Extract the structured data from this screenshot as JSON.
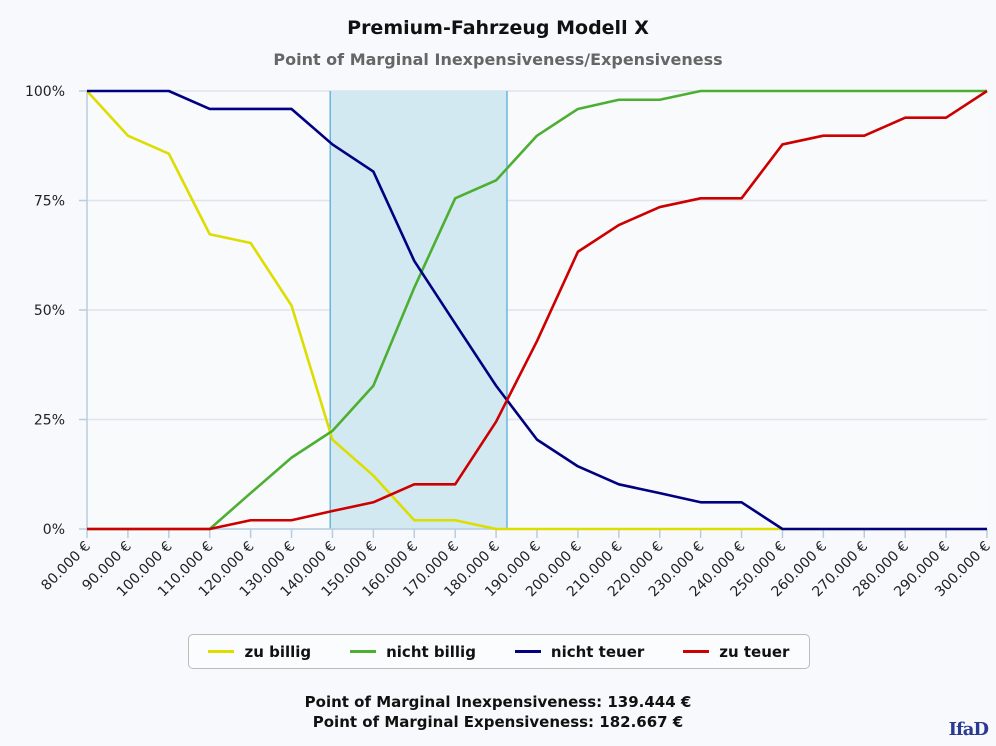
{
  "chart_data": {
    "type": "line",
    "title": "Premium-Fahrzeug Modell X",
    "subtitle": "Point of Marginal Inexpensiveness/Expensiveness",
    "x": [
      80000,
      90000,
      100000,
      110000,
      120000,
      130000,
      140000,
      150000,
      160000,
      170000,
      180000,
      190000,
      200000,
      210000,
      220000,
      230000,
      240000,
      250000,
      260000,
      270000,
      280000,
      290000,
      300000
    ],
    "x_tick_labels": [
      "80.000 €",
      "90.000 €",
      "100.000 €",
      "110.000 €",
      "120.000 €",
      "130.000 €",
      "140.000 €",
      "150.000 €",
      "160.000 €",
      "170.000 €",
      "180.000 €",
      "190.000 €",
      "200.000 €",
      "210.000 €",
      "220.000 €",
      "230.000 €",
      "240.000 €",
      "250.000 €",
      "260.000 €",
      "270.000 €",
      "280.000 €",
      "290.000 €",
      "300.000 €"
    ],
    "y_ticks": [
      0,
      25,
      50,
      75,
      100
    ],
    "y_tick_labels": [
      "0%",
      "25%",
      "50%",
      "75%",
      "100%"
    ],
    "ylim": [
      0,
      100
    ],
    "xlim": [
      80000,
      300000
    ],
    "grid": "horizontal",
    "legend": "bottom",
    "series": [
      {
        "name": "zu billig",
        "color": "#dddd00",
        "values": [
          100,
          89.8,
          85.7,
          67.3,
          65.3,
          51,
          20.4,
          12.2,
          2,
          2,
          0,
          0,
          0,
          0,
          0,
          0,
          0,
          0,
          0,
          0,
          0,
          0,
          0
        ]
      },
      {
        "name": "nicht billig",
        "color": "#4caf32",
        "values": [
          0,
          0,
          0,
          0,
          8.2,
          16.3,
          22.4,
          32.7,
          55.1,
          75.5,
          79.6,
          89.8,
          95.9,
          98,
          98,
          100,
          100,
          100,
          100,
          100,
          100,
          100,
          100
        ]
      },
      {
        "name": "nicht teuer",
        "color": "#000080",
        "values": [
          100,
          100,
          100,
          95.9,
          95.9,
          95.9,
          87.8,
          81.6,
          61.2,
          46.9,
          32.7,
          20.4,
          14.3,
          10.2,
          8.2,
          6.1,
          6.1,
          0,
          0,
          0,
          0,
          0,
          0
        ]
      },
      {
        "name": "zu teuer",
        "color": "#cc0000",
        "values": [
          0,
          0,
          0,
          0,
          2,
          2,
          4.1,
          6.1,
          10.2,
          10.2,
          24.5,
          42.9,
          63.3,
          69.4,
          73.5,
          75.5,
          75.5,
          87.8,
          89.8,
          89.8,
          93.9,
          93.9,
          100
        ]
      }
    ],
    "band": {
      "from": 139444,
      "to": 182667,
      "fill": "#d3e9f2",
      "stroke": "#4aa8d8"
    }
  },
  "footer": {
    "line1": "Point of Marginal Inexpensiveness: 139.444 €",
    "line2": "Point of Marginal Expensiveness: 182.667 €"
  },
  "logo": "IfaD"
}
